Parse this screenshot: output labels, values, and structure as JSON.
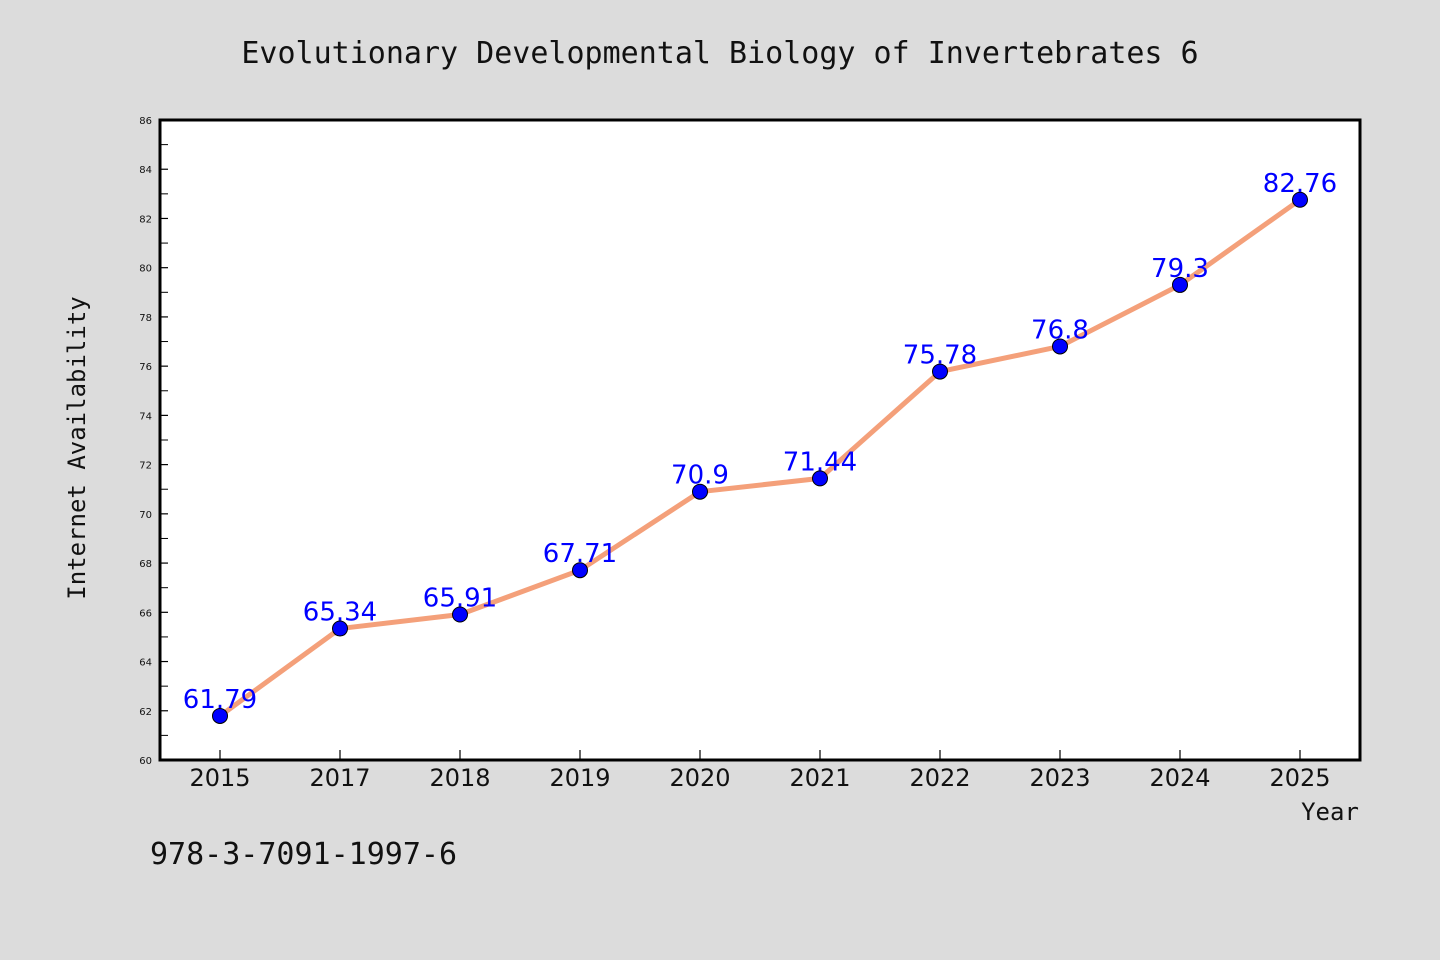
{
  "chart_data": {
    "type": "line",
    "title": "Evolutionary Developmental Biology of Invertebrates 6",
    "xlabel": "Year",
    "ylabel": "Internet Availability",
    "categories": [
      "2015",
      "2017",
      "2018",
      "2019",
      "2020",
      "2021",
      "2022",
      "2023",
      "2024",
      "2025"
    ],
    "series": [
      {
        "values": [
          61.79,
          65.34,
          65.91,
          67.71,
          70.9,
          71.44,
          75.78,
          76.8,
          79.3,
          82.76
        ],
        "labels": [
          "61.79",
          "65.34",
          "65.91",
          "67.71",
          "70.9",
          "71.44",
          "75.78",
          "76.8",
          "79.3",
          "82.76"
        ]
      }
    ],
    "ylim": [
      60,
      86
    ],
    "yticks": [
      "60",
      "62",
      "64",
      "66",
      "68",
      "70",
      "72",
      "74",
      "76",
      "78",
      "80",
      "82",
      "84",
      "86"
    ],
    "grid": false,
    "legend": "none",
    "colors": {
      "line": "#f4a07a",
      "marker": "#0000ff",
      "data_label": "#0000ff",
      "background": "#dcdcdc",
      "plot_background": "#ffffff"
    }
  },
  "footer": {
    "isbn": "978-3-7091-1997-6"
  }
}
